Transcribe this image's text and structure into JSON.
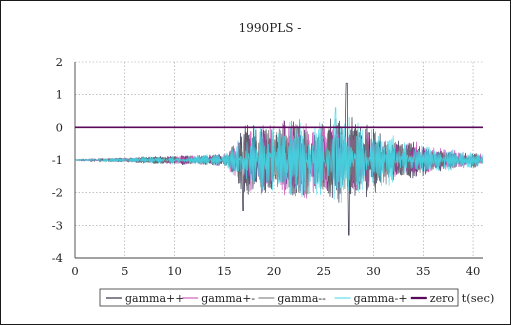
{
  "chart_data": {
    "type": "line",
    "title": "1990PLS -",
    "xlabel": "t(sec)",
    "ylabel": "",
    "xlim": [
      0,
      41
    ],
    "ylim": [
      -4,
      2
    ],
    "xticks": [
      0,
      5,
      10,
      15,
      20,
      25,
      30,
      35,
      40
    ],
    "yticks": [
      -4,
      -3,
      -2,
      -1,
      0,
      1,
      2
    ],
    "grid": true,
    "legend_position": "bottom",
    "series": [
      {
        "name": "gamma++",
        "color": "#1f1f3a",
        "center": -1.0,
        "seed": 11,
        "envelope_t": [
          0,
          5,
          10,
          15,
          16,
          17,
          20,
          22,
          25,
          27,
          28,
          30,
          33,
          36,
          40,
          41
        ],
        "envelope_a": [
          0.02,
          0.08,
          0.15,
          0.2,
          0.6,
          1.2,
          1.1,
          1.4,
          1.2,
          1.7,
          1.3,
          1.1,
          0.7,
          0.4,
          0.25,
          0.2
        ]
      },
      {
        "name": "gamma+-",
        "color": "#c040b0",
        "center": -1.0,
        "seed": 23,
        "envelope_t": [
          0,
          5,
          10,
          15,
          16,
          17,
          20,
          22,
          25,
          27,
          28,
          30,
          33,
          36,
          40,
          41
        ],
        "envelope_a": [
          0.02,
          0.07,
          0.14,
          0.2,
          0.5,
          1.0,
          1.2,
          1.3,
          1.1,
          1.3,
          1.2,
          1.0,
          0.7,
          0.4,
          0.25,
          0.2
        ]
      },
      {
        "name": "gamma--",
        "color": "#707070",
        "center": -1.0,
        "seed": 37,
        "envelope_t": [
          0,
          5,
          10,
          15,
          16,
          17,
          20,
          22,
          25,
          27,
          28,
          30,
          33,
          36,
          40,
          41
        ],
        "envelope_a": [
          0.02,
          0.06,
          0.13,
          0.18,
          0.5,
          1.0,
          1.0,
          1.2,
          1.0,
          1.4,
          1.1,
          0.9,
          0.6,
          0.35,
          0.22,
          0.2
        ]
      },
      {
        "name": "gamma-+",
        "color": "#40d8e8",
        "center": -1.0,
        "seed": 53,
        "envelope_t": [
          0,
          5,
          10,
          15,
          16,
          17,
          20,
          22,
          25,
          27,
          28,
          30,
          33,
          36,
          40,
          41
        ],
        "envelope_a": [
          0.02,
          0.07,
          0.14,
          0.2,
          0.55,
          1.1,
          1.15,
          1.35,
          1.15,
          1.45,
          1.25,
          1.05,
          0.7,
          0.4,
          0.25,
          0.2
        ]
      },
      {
        "name": "zero",
        "color": "#5a0a5a",
        "constant": 0
      }
    ]
  }
}
